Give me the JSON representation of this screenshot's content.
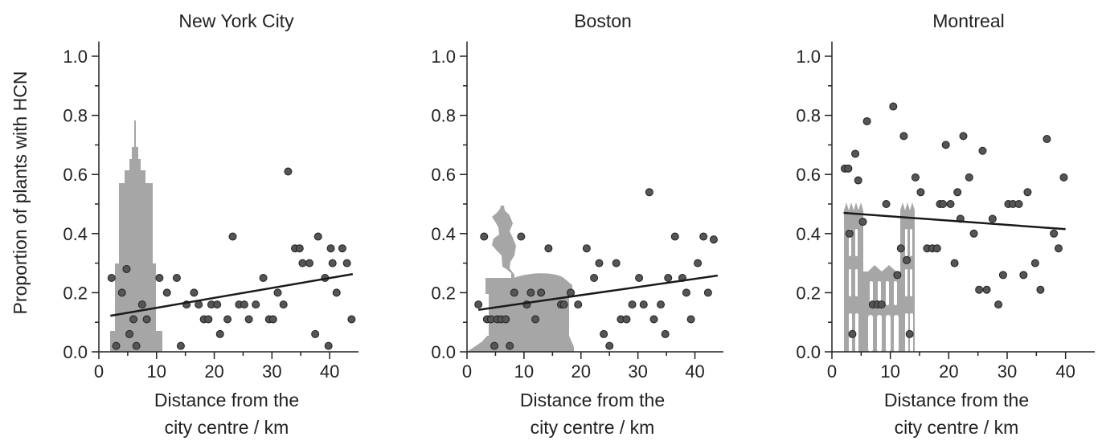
{
  "y_axis_label": "Proportion of plants with HCN",
  "chart_data": [
    {
      "type": "scatter",
      "title": "New York City",
      "xlabel": [
        "Distance from the",
        "city centre / km"
      ],
      "xlim": [
        0,
        45
      ],
      "ylim": [
        0,
        1.05
      ],
      "x_ticks": [
        0,
        10,
        20,
        30,
        40
      ],
      "y_ticks": [
        0.0,
        0.2,
        0.4,
        0.6,
        0.8,
        1.0
      ],
      "y_minor_ticks": [
        0.1,
        0.3,
        0.5,
        0.7,
        0.9
      ],
      "x_minor_ticks": [
        5,
        15,
        25,
        35
      ],
      "background_icon": "empire-state-building-icon",
      "points": [
        [
          2.2,
          0.25
        ],
        [
          3.0,
          0.02
        ],
        [
          4.0,
          0.2
        ],
        [
          4.8,
          0.28
        ],
        [
          5.3,
          0.06
        ],
        [
          6.0,
          0.11
        ],
        [
          6.5,
          0.02
        ],
        [
          7.5,
          0.16
        ],
        [
          8.3,
          0.11
        ],
        [
          10.5,
          0.25
        ],
        [
          11.8,
          0.2
        ],
        [
          13.5,
          0.25
        ],
        [
          14.2,
          0.02
        ],
        [
          15.2,
          0.16
        ],
        [
          16.5,
          0.2
        ],
        [
          17.3,
          0.16
        ],
        [
          18.2,
          0.11
        ],
        [
          19.0,
          0.11
        ],
        [
          19.5,
          0.16
        ],
        [
          20.5,
          0.16
        ],
        [
          21.0,
          0.06
        ],
        [
          22.3,
          0.11
        ],
        [
          23.2,
          0.39
        ],
        [
          24.3,
          0.16
        ],
        [
          25.2,
          0.16
        ],
        [
          26.0,
          0.11
        ],
        [
          27.2,
          0.16
        ],
        [
          28.5,
          0.25
        ],
        [
          29.5,
          0.11
        ],
        [
          30.2,
          0.11
        ],
        [
          31.0,
          0.2
        ],
        [
          32.0,
          0.16
        ],
        [
          32.8,
          0.61
        ],
        [
          34.0,
          0.35
        ],
        [
          34.8,
          0.35
        ],
        [
          35.3,
          0.3
        ],
        [
          36.5,
          0.3
        ],
        [
          37.5,
          0.06
        ],
        [
          38.0,
          0.39
        ],
        [
          39.2,
          0.25
        ],
        [
          39.8,
          0.02
        ],
        [
          40.2,
          0.35
        ],
        [
          40.5,
          0.3
        ],
        [
          41.2,
          0.2
        ],
        [
          42.2,
          0.35
        ],
        [
          43.0,
          0.3
        ],
        [
          43.8,
          0.11
        ]
      ],
      "trend": [
        [
          2.0,
          0.122
        ],
        [
          44.0,
          0.263
        ]
      ]
    },
    {
      "type": "scatter",
      "title": "Boston",
      "xlabel": [
        "Distance from the",
        "city centre / km"
      ],
      "xlim": [
        0,
        45
      ],
      "ylim": [
        0,
        1.05
      ],
      "x_ticks": [
        0,
        10,
        20,
        30,
        40
      ],
      "y_ticks": [
        0.0,
        0.2,
        0.4,
        0.6,
        0.8,
        1.0
      ],
      "y_minor_ticks": [
        0.1,
        0.3,
        0.5,
        0.7,
        0.9
      ],
      "x_minor_ticks": [
        5,
        15,
        25,
        35
      ],
      "background_icon": "equestrian-statue-and-pavilion-icon",
      "points": [
        [
          2.0,
          0.16
        ],
        [
          3.0,
          0.39
        ],
        [
          3.5,
          0.11
        ],
        [
          4.2,
          0.11
        ],
        [
          4.8,
          0.02
        ],
        [
          5.3,
          0.11
        ],
        [
          6.0,
          0.11
        ],
        [
          6.8,
          0.11
        ],
        [
          7.5,
          0.02
        ],
        [
          8.3,
          0.2
        ],
        [
          9.5,
          0.39
        ],
        [
          10.5,
          0.16
        ],
        [
          11.2,
          0.2
        ],
        [
          12.0,
          0.11
        ],
        [
          13.0,
          0.2
        ],
        [
          14.3,
          0.35
        ],
        [
          16.5,
          0.16
        ],
        [
          17.0,
          0.16
        ],
        [
          18.2,
          0.2
        ],
        [
          19.5,
          0.16
        ],
        [
          21.0,
          0.35
        ],
        [
          22.3,
          0.25
        ],
        [
          23.2,
          0.3
        ],
        [
          24.0,
          0.06
        ],
        [
          25.0,
          0.02
        ],
        [
          26.2,
          0.3
        ],
        [
          27.0,
          0.11
        ],
        [
          28.0,
          0.11
        ],
        [
          29.0,
          0.16
        ],
        [
          30.2,
          0.25
        ],
        [
          31.0,
          0.16
        ],
        [
          32.0,
          0.54
        ],
        [
          32.8,
          0.11
        ],
        [
          34.0,
          0.16
        ],
        [
          34.8,
          0.06
        ],
        [
          35.3,
          0.25
        ],
        [
          36.5,
          0.39
        ],
        [
          37.8,
          0.25
        ],
        [
          38.5,
          0.2
        ],
        [
          39.3,
          0.11
        ],
        [
          40.5,
          0.3
        ],
        [
          41.5,
          0.39
        ],
        [
          42.3,
          0.2
        ],
        [
          43.3,
          0.38
        ]
      ],
      "trend": [
        [
          2.0,
          0.142
        ],
        [
          44.0,
          0.258
        ]
      ]
    },
    {
      "type": "scatter",
      "title": "Montreal",
      "xlabel": [
        "Distance from the",
        "city centre / km"
      ],
      "xlim": [
        0,
        45
      ],
      "ylim": [
        0,
        1.05
      ],
      "x_ticks": [
        0,
        10,
        20,
        30,
        40
      ],
      "y_ticks": [
        0.0,
        0.2,
        0.4,
        0.6,
        0.8,
        1.0
      ],
      "y_minor_ticks": [
        0.1,
        0.3,
        0.5,
        0.7,
        0.9
      ],
      "x_minor_ticks": [
        5,
        15,
        25,
        35
      ],
      "background_icon": "notre-dame-basilica-icon",
      "points": [
        [
          2.2,
          0.62
        ],
        [
          2.8,
          0.62
        ],
        [
          3.0,
          0.4
        ],
        [
          3.5,
          0.06
        ],
        [
          4.0,
          0.67
        ],
        [
          4.5,
          0.58
        ],
        [
          5.3,
          0.44
        ],
        [
          6.0,
          0.78
        ],
        [
          7.0,
          0.16
        ],
        [
          7.8,
          0.16
        ],
        [
          8.5,
          0.16
        ],
        [
          9.3,
          0.5
        ],
        [
          10.5,
          0.83
        ],
        [
          11.2,
          0.26
        ],
        [
          11.8,
          0.35
        ],
        [
          12.3,
          0.73
        ],
        [
          12.8,
          0.31
        ],
        [
          13.3,
          0.06
        ],
        [
          14.3,
          0.59
        ],
        [
          15.2,
          0.54
        ],
        [
          16.3,
          0.35
        ],
        [
          17.2,
          0.35
        ],
        [
          18.0,
          0.35
        ],
        [
          18.5,
          0.5
        ],
        [
          19.0,
          0.5
        ],
        [
          19.5,
          0.7
        ],
        [
          20.3,
          0.5
        ],
        [
          21.0,
          0.3
        ],
        [
          21.5,
          0.54
        ],
        [
          22.0,
          0.45
        ],
        [
          22.5,
          0.73
        ],
        [
          23.5,
          0.59
        ],
        [
          24.3,
          0.4
        ],
        [
          25.2,
          0.21
        ],
        [
          25.8,
          0.68
        ],
        [
          26.5,
          0.21
        ],
        [
          27.5,
          0.45
        ],
        [
          28.5,
          0.16
        ],
        [
          29.3,
          0.26
        ],
        [
          30.2,
          0.5
        ],
        [
          31.0,
          0.5
        ],
        [
          32.0,
          0.5
        ],
        [
          32.8,
          0.26
        ],
        [
          33.5,
          0.54
        ],
        [
          34.8,
          0.3
        ],
        [
          35.7,
          0.21
        ],
        [
          36.8,
          0.72
        ],
        [
          38.0,
          0.4
        ],
        [
          38.8,
          0.35
        ],
        [
          39.7,
          0.59
        ]
      ],
      "trend": [
        [
          2.0,
          0.47
        ],
        [
          40.0,
          0.415
        ]
      ]
    }
  ]
}
